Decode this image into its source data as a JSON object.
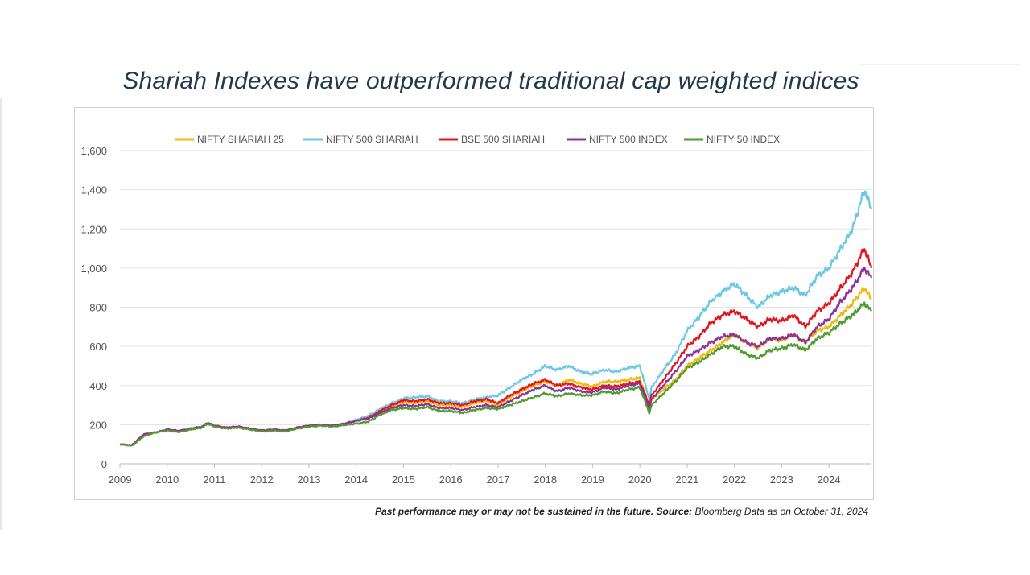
{
  "title": "Shariah Indexes have outperformed traditional cap weighted indices",
  "footnote": {
    "disclaimer": "Past performance may or may not be sustained in the future.",
    "source_label": "Source:",
    "source_text": "Bloomberg Data as on October 31, 2024"
  },
  "chart_data": {
    "type": "line",
    "title": "",
    "xlabel": "",
    "ylabel": "",
    "xlim": [
      2009,
      2024.9
    ],
    "ylim": [
      0,
      1600
    ],
    "x_ticks": [
      "2009",
      "2010",
      "2011",
      "2012",
      "2013",
      "2014",
      "2015",
      "2016",
      "2017",
      "2018",
      "2019",
      "2020",
      "2021",
      "2022",
      "2023",
      "2024"
    ],
    "y_ticks": [
      0,
      200,
      400,
      600,
      800,
      1000,
      1200,
      1400,
      1600
    ],
    "y_tick_labels": [
      "0",
      "200",
      "400",
      "600",
      "800",
      "1,000",
      "1,200",
      "1,400",
      "1,600"
    ],
    "grid": "horizontal",
    "legend_position": "top",
    "x": [
      2009.0,
      2009.25,
      2009.5,
      2009.75,
      2010.0,
      2010.25,
      2010.5,
      2010.75,
      2010.85,
      2011.0,
      2011.25,
      2011.5,
      2011.75,
      2012.0,
      2012.25,
      2012.5,
      2012.75,
      2013.0,
      2013.25,
      2013.5,
      2013.75,
      2014.0,
      2014.25,
      2014.5,
      2014.75,
      2015.0,
      2015.25,
      2015.5,
      2015.75,
      2016.0,
      2016.25,
      2016.5,
      2016.75,
      2017.0,
      2017.25,
      2017.5,
      2017.75,
      2018.0,
      2018.25,
      2018.5,
      2018.75,
      2019.0,
      2019.25,
      2019.5,
      2019.75,
      2020.0,
      2020.2,
      2020.25,
      2020.5,
      2020.75,
      2021.0,
      2021.25,
      2021.5,
      2021.75,
      2022.0,
      2022.25,
      2022.5,
      2022.75,
      2023.0,
      2023.25,
      2023.5,
      2023.75,
      2024.0,
      2024.25,
      2024.5,
      2024.75,
      2024.9
    ],
    "series": [
      {
        "name": "NIFTY SHARIAH 25",
        "color": "#f2b70d",
        "values": [
          100,
          95,
          150,
          160,
          175,
          168,
          180,
          190,
          210,
          195,
          185,
          190,
          180,
          170,
          175,
          170,
          185,
          195,
          200,
          195,
          205,
          220,
          235,
          260,
          290,
          315,
          310,
          320,
          300,
          300,
          290,
          310,
          320,
          300,
          340,
          370,
          400,
          420,
          400,
          430,
          410,
          395,
          420,
          420,
          430,
          440,
          290,
          330,
          380,
          430,
          500,
          540,
          580,
          620,
          660,
          620,
          590,
          640,
          630,
          660,
          620,
          680,
          700,
          760,
          820,
          900,
          840
        ]
      },
      {
        "name": "NIFTY 500 SHARIAH",
        "color": "#6ac8e6",
        "values": [
          100,
          95,
          150,
          160,
          175,
          168,
          180,
          190,
          210,
          195,
          185,
          190,
          180,
          170,
          175,
          170,
          185,
          195,
          200,
          195,
          205,
          225,
          245,
          280,
          310,
          335,
          340,
          345,
          320,
          320,
          310,
          330,
          340,
          350,
          390,
          430,
          460,
          500,
          480,
          500,
          470,
          460,
          480,
          470,
          490,
          500,
          330,
          390,
          480,
          560,
          680,
          750,
          830,
          880,
          920,
          860,
          800,
          860,
          880,
          900,
          860,
          960,
          1000,
          1100,
          1200,
          1400,
          1300
        ]
      },
      {
        "name": "BSE 500 SHARIAH",
        "color": "#e3141b",
        "values": [
          100,
          95,
          150,
          160,
          175,
          168,
          180,
          190,
          210,
          195,
          185,
          190,
          180,
          170,
          175,
          170,
          185,
          195,
          200,
          195,
          205,
          220,
          235,
          270,
          300,
          325,
          320,
          330,
          310,
          310,
          300,
          320,
          330,
          310,
          350,
          380,
          410,
          430,
          400,
          410,
          390,
          380,
          400,
          395,
          410,
          420,
          300,
          350,
          430,
          510,
          600,
          650,
          720,
          760,
          780,
          740,
          700,
          740,
          730,
          760,
          700,
          780,
          820,
          900,
          980,
          1100,
          1000
        ]
      },
      {
        "name": "NIFTY 500 INDEX",
        "color": "#8b3399",
        "values": [
          100,
          95,
          150,
          160,
          175,
          168,
          180,
          190,
          210,
          195,
          185,
          190,
          180,
          170,
          175,
          170,
          185,
          195,
          200,
          195,
          205,
          220,
          230,
          260,
          285,
          300,
          295,
          305,
          285,
          285,
          275,
          290,
          300,
          290,
          320,
          350,
          380,
          400,
          370,
          390,
          370,
          365,
          390,
          380,
          400,
          410,
          280,
          330,
          400,
          470,
          550,
          580,
          620,
          650,
          660,
          620,
          600,
          640,
          640,
          660,
          620,
          700,
          740,
          830,
          900,
          1000,
          950
        ]
      },
      {
        "name": "NIFTY 50 INDEX",
        "color": "#4e9b2e",
        "values": [
          100,
          92,
          140,
          160,
          170,
          162,
          175,
          185,
          205,
          190,
          180,
          185,
          175,
          165,
          170,
          165,
          180,
          190,
          195,
          190,
          198,
          205,
          215,
          250,
          275,
          285,
          280,
          290,
          270,
          270,
          260,
          275,
          285,
          280,
          300,
          320,
          340,
          360,
          345,
          360,
          350,
          350,
          370,
          360,
          380,
          390,
          260,
          300,
          360,
          420,
          490,
          520,
          560,
          600,
          600,
          560,
          540,
          580,
          590,
          610,
          580,
          640,
          670,
          720,
          760,
          820,
          780
        ]
      }
    ]
  }
}
